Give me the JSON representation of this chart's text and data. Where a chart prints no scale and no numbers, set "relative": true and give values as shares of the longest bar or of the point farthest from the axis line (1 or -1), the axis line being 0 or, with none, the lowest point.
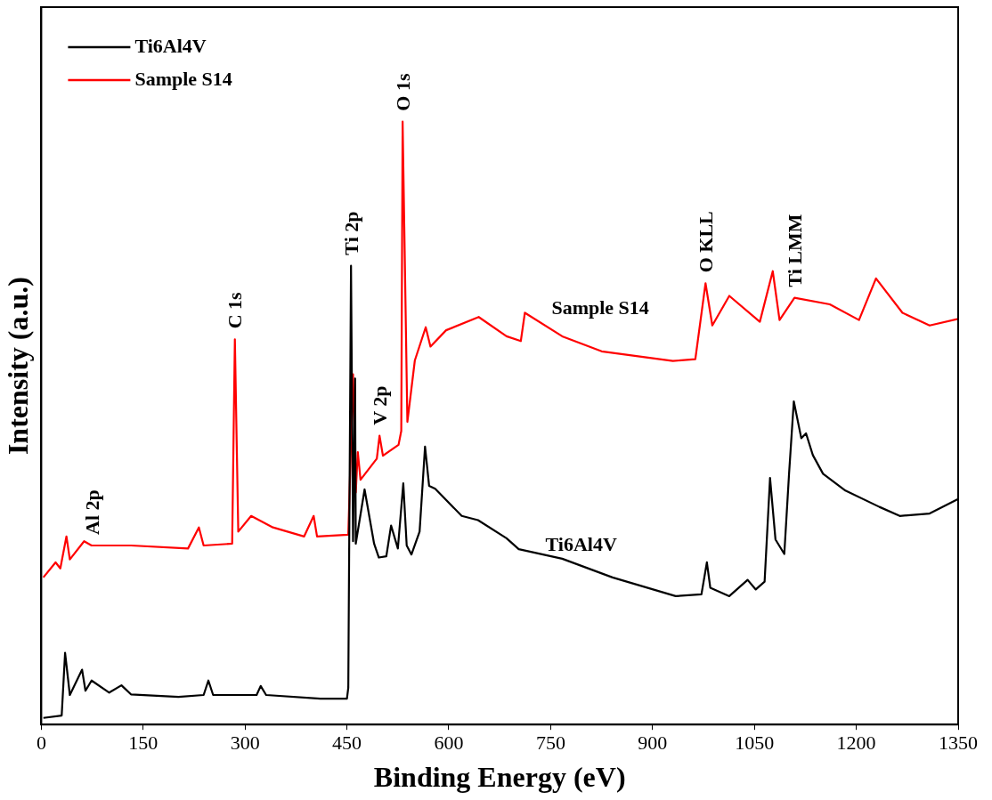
{
  "chart_data": {
    "type": "line",
    "xlabel": "Binding Energy (eV)",
    "ylabel": "Intensity (a.u.)",
    "relative": true,
    "legend": "top left",
    "grid": false,
    "marker": "none",
    "line_style": "solid",
    "xlim": [
      0,
      1350
    ],
    "xticks": [
      0,
      150,
      300,
      450,
      600,
      750,
      900,
      1050,
      1200,
      1350
    ],
    "series": [
      {
        "name": "Ti6Al4V",
        "color": "#000000",
        "x": [
          3,
          30,
          35,
          42,
          60,
          65,
          74,
          100,
          118,
          132,
          202,
          239,
          246,
          253,
          317,
          323,
          331,
          411,
          450,
          452,
          456,
          459,
          462,
          463,
          476,
          490,
          497,
          508,
          515,
          525,
          533,
          538,
          545,
          557,
          565,
          571,
          580,
          619,
          643,
          685,
          703,
          767,
          841,
          934,
          972,
          980,
          985,
          1013,
          1040,
          1052,
          1065,
          1073,
          1081,
          1094,
          1101,
          1108,
          1119,
          1126,
          1136,
          1151,
          1184,
          1234,
          1264,
          1308,
          1350
        ],
        "values": [
          0.011,
          0.015,
          0.119,
          0.049,
          0.091,
          0.056,
          0.073,
          0.053,
          0.065,
          0.05,
          0.046,
          0.049,
          0.073,
          0.049,
          0.049,
          0.064,
          0.049,
          0.043,
          0.043,
          0.061,
          0.761,
          0.304,
          0.574,
          0.3,
          0.39,
          0.3,
          0.277,
          0.279,
          0.33,
          0.292,
          0.4,
          0.297,
          0.282,
          0.32,
          0.461,
          0.396,
          0.391,
          0.346,
          0.339,
          0.309,
          0.291,
          0.275,
          0.244,
          0.213,
          0.216,
          0.269,
          0.227,
          0.213,
          0.24,
          0.224,
          0.237,
          0.409,
          0.307,
          0.283,
          0.416,
          0.536,
          0.475,
          0.483,
          0.447,
          0.416,
          0.388,
          0.361,
          0.346,
          0.35,
          0.374
        ]
      },
      {
        "name": "Sample S14",
        "color": "#ff0000",
        "x": [
          3,
          21,
          28,
          37,
          42,
          63,
          74,
          132,
          216,
          232,
          239,
          281,
          285,
          290,
          309,
          341,
          387,
          401,
          406,
          452,
          459,
          463,
          466,
          470,
          494,
          498,
          503,
          526,
          530,
          532,
          539,
          550,
          566,
          573,
          596,
          644,
          685,
          706,
          712,
          767,
          825,
          930,
          963,
          978,
          988,
          1013,
          1058,
          1077,
          1087,
          1109,
          1161,
          1204,
          1229,
          1268,
          1308,
          1350
        ],
        "values": [
          0.244,
          0.269,
          0.259,
          0.312,
          0.274,
          0.304,
          0.297,
          0.297,
          0.292,
          0.327,
          0.297,
          0.3,
          0.639,
          0.32,
          0.346,
          0.327,
          0.312,
          0.346,
          0.312,
          0.315,
          0.581,
          0.385,
          0.452,
          0.406,
          0.441,
          0.479,
          0.446,
          0.464,
          0.487,
          1,
          0.502,
          0.604,
          0.659,
          0.627,
          0.654,
          0.676,
          0.644,
          0.636,
          0.683,
          0.644,
          0.619,
          0.603,
          0.606,
          0.732,
          0.662,
          0.711,
          0.668,
          0.752,
          0.671,
          0.708,
          0.697,
          0.671,
          0.74,
          0.683,
          0.662,
          0.673
        ]
      }
    ],
    "annotations": [
      {
        "text": "Al 2p",
        "x": 74,
        "y": 0.297
      },
      {
        "text": "C 1s",
        "x": 285,
        "y": 0.639
      },
      {
        "text": "Ti 2p",
        "x": 456,
        "y": 0.761
      },
      {
        "text": "V 2p",
        "x": 498,
        "y": 0.479
      },
      {
        "text": "O 1s",
        "x": 532,
        "y": 1
      },
      {
        "text": "O KLL",
        "x": 978,
        "y": 0.732
      },
      {
        "text": "Ti LMM",
        "x": 1109,
        "y": 0.708
      },
      {
        "text": "Sample S14",
        "x": 712,
        "y": 0.683
      },
      {
        "text": "Ti6Al4V",
        "x": 703,
        "y": 0.291
      }
    ]
  }
}
